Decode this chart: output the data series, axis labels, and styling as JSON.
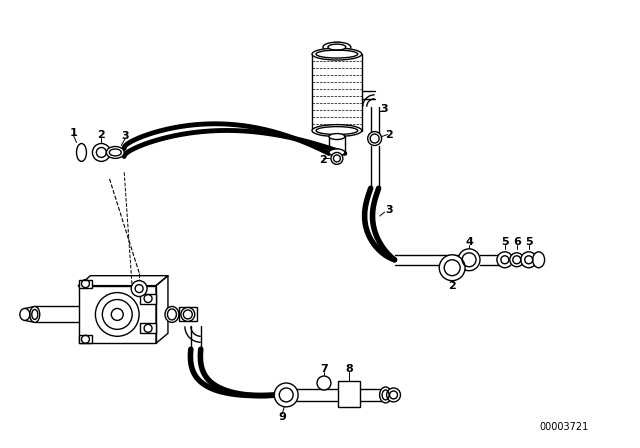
{
  "background_color": "#ffffff",
  "line_color": "#000000",
  "part_number": "00003721",
  "figsize": [
    6.4,
    4.48
  ],
  "dpi": 100
}
